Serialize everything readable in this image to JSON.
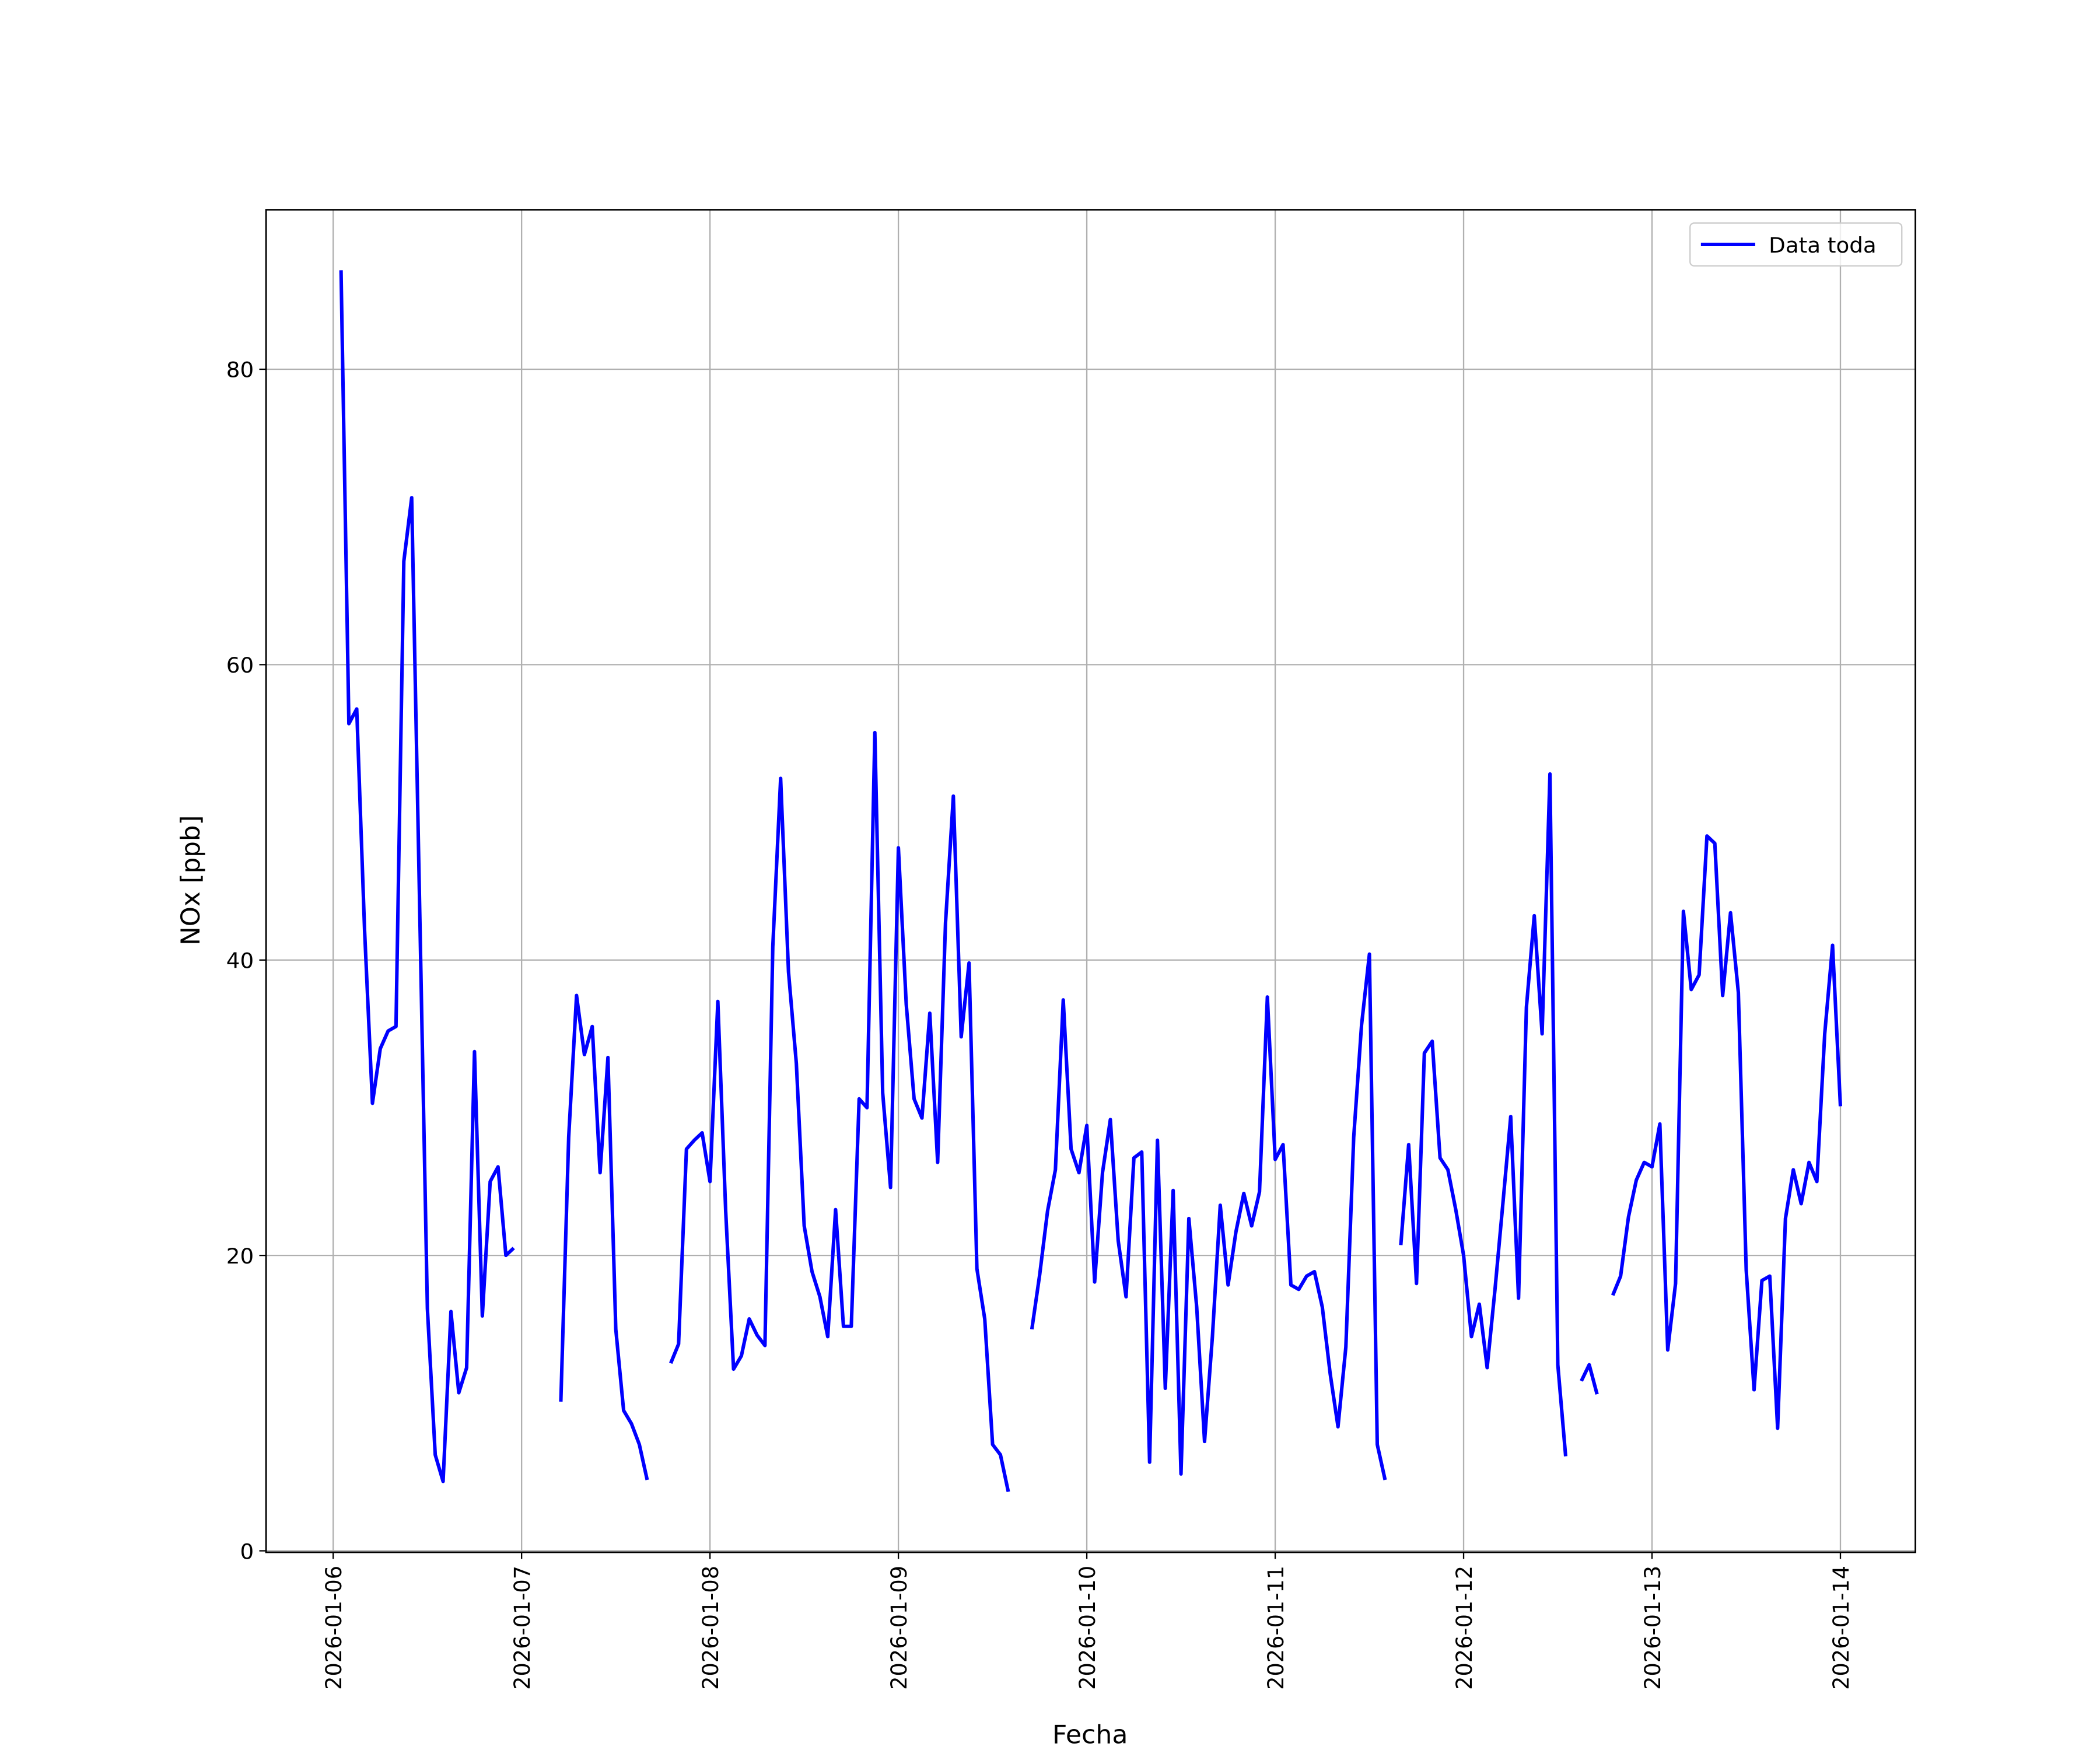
{
  "chart_data": {
    "type": "line",
    "xlabel": "Fecha",
    "ylabel": "NOx [ppb]",
    "x": [
      "2026-01-06 01:00",
      "2026-01-06 02:00",
      "2026-01-06 03:00",
      "2026-01-06 04:00",
      "2026-01-06 05:00",
      "2026-01-06 06:00",
      "2026-01-06 07:00",
      "2026-01-06 08:00",
      "2026-01-06 09:00",
      "2026-01-06 10:00",
      "2026-01-06 11:00",
      "2026-01-06 12:00",
      "2026-01-06 13:00",
      "2026-01-06 14:00",
      "2026-01-06 15:00",
      "2026-01-06 16:00",
      "2026-01-06 17:00",
      "2026-01-06 18:00",
      "2026-01-06 19:00",
      "2026-01-06 20:00",
      "2026-01-06 21:00",
      "2026-01-06 22:00",
      "2026-01-06 23:00",
      "2026-01-07 00:00",
      "2026-01-07 01:00",
      "2026-01-07 02:00",
      "2026-01-07 03:00",
      "2026-01-07 04:00",
      "2026-01-07 05:00",
      "2026-01-07 06:00",
      "2026-01-07 07:00",
      "2026-01-07 08:00",
      "2026-01-07 09:00",
      "2026-01-07 10:00",
      "2026-01-07 11:00",
      "2026-01-07 12:00",
      "2026-01-07 13:00",
      "2026-01-07 14:00",
      "2026-01-07 15:00",
      "2026-01-07 16:00",
      "2026-01-07 17:00",
      "2026-01-07 18:00",
      "2026-01-07 19:00",
      "2026-01-07 20:00",
      "2026-01-07 21:00",
      "2026-01-07 22:00",
      "2026-01-07 23:00",
      "2026-01-08 00:00",
      "2026-01-08 01:00",
      "2026-01-08 02:00",
      "2026-01-08 03:00",
      "2026-01-08 04:00",
      "2026-01-08 05:00",
      "2026-01-08 06:00",
      "2026-01-08 07:00",
      "2026-01-08 08:00",
      "2026-01-08 09:00",
      "2026-01-08 10:00",
      "2026-01-08 11:00",
      "2026-01-08 12:00",
      "2026-01-08 13:00",
      "2026-01-08 14:00",
      "2026-01-08 15:00",
      "2026-01-08 16:00",
      "2026-01-08 17:00",
      "2026-01-08 18:00",
      "2026-01-08 19:00",
      "2026-01-08 20:00",
      "2026-01-08 21:00",
      "2026-01-08 22:00",
      "2026-01-08 23:00",
      "2026-01-09 00:00",
      "2026-01-09 01:00",
      "2026-01-09 02:00",
      "2026-01-09 03:00",
      "2026-01-09 04:00",
      "2026-01-09 05:00",
      "2026-01-09 06:00",
      "2026-01-09 07:00",
      "2026-01-09 08:00",
      "2026-01-09 09:00",
      "2026-01-09 10:00",
      "2026-01-09 11:00",
      "2026-01-09 12:00",
      "2026-01-09 13:00",
      "2026-01-09 14:00",
      "2026-01-09 15:00",
      "2026-01-09 16:00",
      "2026-01-09 17:00",
      "2026-01-09 18:00",
      "2026-01-09 19:00",
      "2026-01-09 20:00",
      "2026-01-09 21:00",
      "2026-01-09 22:00",
      "2026-01-09 23:00",
      "2026-01-10 00:00",
      "2026-01-10 01:00",
      "2026-01-10 02:00",
      "2026-01-10 03:00",
      "2026-01-10 04:00",
      "2026-01-10 05:00",
      "2026-01-10 06:00",
      "2026-01-10 07:00",
      "2026-01-10 08:00",
      "2026-01-10 09:00",
      "2026-01-10 10:00",
      "2026-01-10 11:00",
      "2026-01-10 12:00",
      "2026-01-10 13:00",
      "2026-01-10 14:00",
      "2026-01-10 15:00",
      "2026-01-10 16:00",
      "2026-01-10 17:00",
      "2026-01-10 18:00",
      "2026-01-10 19:00",
      "2026-01-10 20:00",
      "2026-01-10 21:00",
      "2026-01-10 22:00",
      "2026-01-10 23:00",
      "2026-01-11 00:00",
      "2026-01-11 01:00",
      "2026-01-11 02:00",
      "2026-01-11 03:00",
      "2026-01-11 04:00",
      "2026-01-11 05:00",
      "2026-01-11 06:00",
      "2026-01-11 07:00",
      "2026-01-11 08:00",
      "2026-01-11 09:00",
      "2026-01-11 10:00",
      "2026-01-11 11:00",
      "2026-01-11 12:00",
      "2026-01-11 13:00",
      "2026-01-11 14:00",
      "2026-01-11 15:00",
      "2026-01-11 16:00",
      "2026-01-11 17:00",
      "2026-01-11 18:00",
      "2026-01-11 19:00",
      "2026-01-11 20:00",
      "2026-01-11 21:00",
      "2026-01-11 22:00",
      "2026-01-11 23:00",
      "2026-01-12 00:00",
      "2026-01-12 01:00",
      "2026-01-12 02:00",
      "2026-01-12 03:00",
      "2026-01-12 04:00",
      "2026-01-12 05:00",
      "2026-01-12 06:00",
      "2026-01-12 07:00",
      "2026-01-12 08:00",
      "2026-01-12 09:00",
      "2026-01-12 10:00",
      "2026-01-12 11:00",
      "2026-01-12 12:00",
      "2026-01-12 13:00",
      "2026-01-12 14:00",
      "2026-01-12 15:00",
      "2026-01-12 16:00",
      "2026-01-12 17:00",
      "2026-01-12 18:00",
      "2026-01-12 19:00",
      "2026-01-12 20:00",
      "2026-01-12 21:00",
      "2026-01-12 22:00",
      "2026-01-12 23:00",
      "2026-01-13 00:00",
      "2026-01-13 01:00",
      "2026-01-13 02:00",
      "2026-01-13 03:00",
      "2026-01-13 04:00",
      "2026-01-13 05:00",
      "2026-01-13 06:00",
      "2026-01-13 07:00",
      "2026-01-13 08:00",
      "2026-01-13 09:00",
      "2026-01-13 10:00",
      "2026-01-13 11:00",
      "2026-01-13 12:00",
      "2026-01-13 13:00",
      "2026-01-13 14:00",
      "2026-01-13 15:00",
      "2026-01-13 16:00",
      "2026-01-13 17:00",
      "2026-01-13 18:00",
      "2026-01-13 19:00",
      "2026-01-13 20:00",
      "2026-01-13 21:00",
      "2026-01-13 22:00",
      "2026-01-13 23:00",
      "2026-01-14 00:00"
    ],
    "series": [
      {
        "name": "Data toda",
        "color": "#0000ff",
        "values": [
          86.7,
          56,
          57,
          42,
          30.3,
          34,
          35.2,
          35.5,
          67,
          71.3,
          44,
          16.4,
          6.5,
          4.7,
          16.2,
          10.7,
          12.4,
          33.8,
          15.9,
          25,
          26,
          20,
          20.5,
          null,
          null,
          null,
          null,
          null,
          10.1,
          28,
          37.6,
          33.6,
          35.5,
          25.6,
          33.4,
          15,
          9.5,
          8.6,
          7.2,
          4.8,
          null,
          null,
          12.7,
          14,
          27.2,
          27.8,
          28.3,
          25,
          37.2,
          23,
          12.3,
          13.2,
          15.7,
          14.6,
          13.9,
          40.9,
          52.3,
          39.2,
          33,
          22,
          18.9,
          17.2,
          14.5,
          23.1,
          15.2,
          15.2,
          30.6,
          30,
          55.4,
          31,
          24.6,
          47.6,
          37,
          30.6,
          29.3,
          36.4,
          26.3,
          42.5,
          51.1,
          34.8,
          39.8,
          19.1,
          15.7,
          7.2,
          6.5,
          4,
          null,
          null,
          15,
          18.7,
          23,
          25.8,
          37.3,
          27.2,
          25.6,
          28.8,
          18.2,
          25.6,
          29.2,
          21,
          17.2,
          26.6,
          27,
          6,
          27.8,
          11,
          24.4,
          5.2,
          22.5,
          16.5,
          7.4,
          14.5,
          23.4,
          18,
          21.6,
          24.2,
          22,
          24.3,
          37.5,
          26.5,
          27.5,
          18,
          17.7,
          18.6,
          18.9,
          16.5,
          12,
          8.4,
          13.8,
          28,
          35.6,
          40.4,
          7.2,
          4.8,
          null,
          20.7,
          27.5,
          18.1,
          33.7,
          34.5,
          26.6,
          25.8,
          23.1,
          20,
          14.5,
          16.7,
          12.4,
          17.7,
          23.5,
          29.4,
          17.1,
          36.8,
          43,
          35,
          52.6,
          12.6,
          6.4,
          null,
          11.5,
          12.6,
          10.6,
          null,
          17.3,
          18.6,
          22.6,
          25.1,
          26.3,
          26,
          28.9,
          13.6,
          18.1,
          43.3,
          38,
          39,
          48.4,
          47.9,
          37.6,
          43.2,
          37.8,
          19,
          10.9,
          18.3,
          18.6,
          8.3,
          22.5,
          25.8,
          23.5,
          26.3,
          25,
          35,
          41,
          30.1
        ]
      }
    ],
    "xlim": [
      "2026-01-05 15:27",
      "2026-01-14 09:33"
    ],
    "xticks": [
      "2026-01-06",
      "2026-01-07",
      "2026-01-08",
      "2026-01-09",
      "2026-01-10",
      "2026-01-11",
      "2026-01-12",
      "2026-01-13",
      "2026-01-14"
    ],
    "ylim": [
      -0.1,
      90.8
    ],
    "yticks": [
      0,
      20,
      40,
      60,
      80
    ],
    "grid": true,
    "legend": "upper right"
  }
}
